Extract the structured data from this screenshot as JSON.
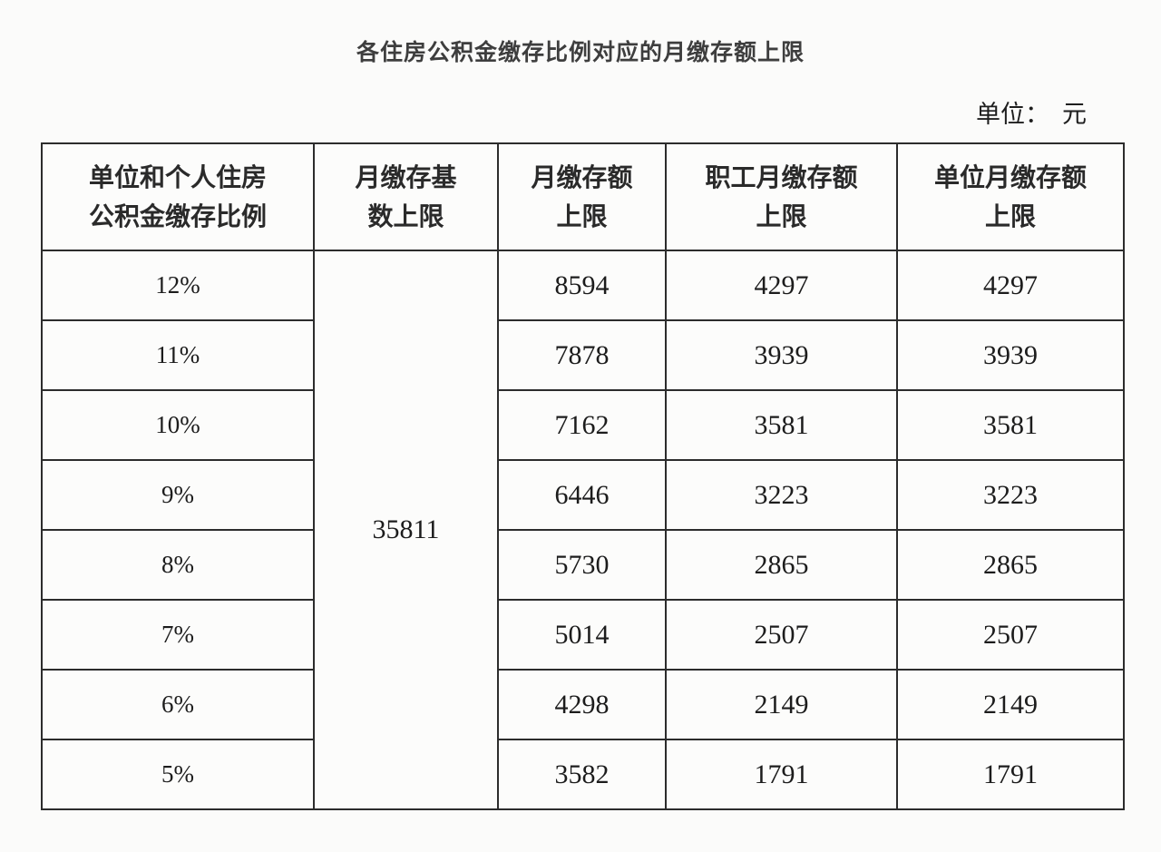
{
  "page": {
    "title": "各住房公积金缴存比例对应的月缴存额上限",
    "unit_label": "单位：",
    "unit_value": "元"
  },
  "table": {
    "columns": [
      {
        "line1": "单位和个人住房",
        "line2": "公积金缴存比例"
      },
      {
        "line1": "月缴存基",
        "line2": "数上限"
      },
      {
        "line1": "月缴存额",
        "line2": "上限"
      },
      {
        "line1": "职工月缴存额",
        "line2": "上限"
      },
      {
        "line1": "单位月缴存额",
        "line2": "上限"
      }
    ],
    "base_limit": "35811",
    "rows": [
      {
        "ratio": "12%",
        "monthly": "8594",
        "employee": "4297",
        "employer": "4297"
      },
      {
        "ratio": "11%",
        "monthly": "7878",
        "employee": "3939",
        "employer": "3939"
      },
      {
        "ratio": "10%",
        "monthly": "7162",
        "employee": "3581",
        "employer": "3581"
      },
      {
        "ratio": "9%",
        "monthly": "6446",
        "employee": "3223",
        "employer": "3223"
      },
      {
        "ratio": "8%",
        "monthly": "5730",
        "employee": "2865",
        "employer": "2865"
      },
      {
        "ratio": "7%",
        "monthly": "5014",
        "employee": "2507",
        "employer": "2507"
      },
      {
        "ratio": "6%",
        "monthly": "4298",
        "employee": "2149",
        "employer": "2149"
      },
      {
        "ratio": "5%",
        "monthly": "3582",
        "employee": "1791",
        "employer": "1791"
      }
    ]
  },
  "chart_data": {
    "type": "table",
    "title": "各住房公积金缴存比例对应的月缴存额上限",
    "unit": "元",
    "columns": [
      "单位和个人住房公积金缴存比例",
      "月缴存基数上限",
      "月缴存额上限",
      "职工月缴存额上限",
      "单位月缴存额上限"
    ],
    "rows": [
      [
        "12%",
        35811,
        8594,
        4297,
        4297
      ],
      [
        "11%",
        35811,
        7878,
        3939,
        3939
      ],
      [
        "10%",
        35811,
        7162,
        3581,
        3581
      ],
      [
        "9%",
        35811,
        6446,
        3223,
        3223
      ],
      [
        "8%",
        35811,
        5730,
        2865,
        2865
      ],
      [
        "7%",
        35811,
        5014,
        2507,
        2507
      ],
      [
        "6%",
        35811,
        4298,
        2149,
        2149
      ],
      [
        "5%",
        35811,
        3582,
        1791,
        1791
      ]
    ]
  }
}
